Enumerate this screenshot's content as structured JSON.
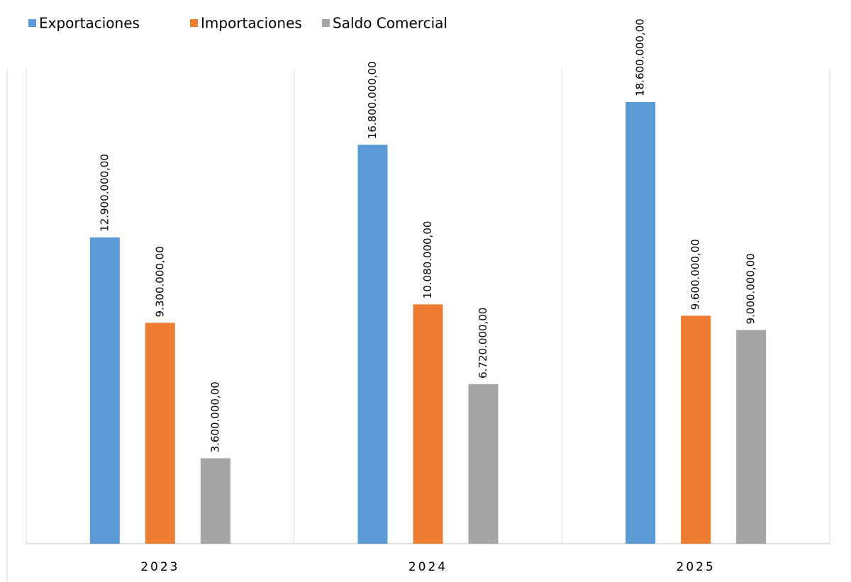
{
  "chart_data": {
    "type": "bar",
    "categories": [
      "2023",
      "2024",
      "2025"
    ],
    "series": [
      {
        "name": "Exportaciones",
        "color": "#5b9bd5",
        "values": [
          12900000,
          16800000,
          18600000
        ],
        "value_labels": [
          "12.900.000,00",
          "16.800.000,00",
          "18.600.000,00"
        ]
      },
      {
        "name": "Importaciones",
        "color": "#ed7d31",
        "values": [
          9300000,
          10080000,
          9600000
        ],
        "value_labels": [
          "9.300.000,00",
          "10.080.000,00",
          "9.600.000,00"
        ]
      },
      {
        "name": "Saldo Comercial",
        "color": "#a5a5a5",
        "values": [
          3600000,
          6720000,
          9000000
        ],
        "value_labels": [
          "3.600.000,00",
          "6.720.000,00",
          "9.000.000,00"
        ]
      }
    ],
    "ylim": [
      0,
      20000000
    ],
    "legend": "top-left"
  }
}
